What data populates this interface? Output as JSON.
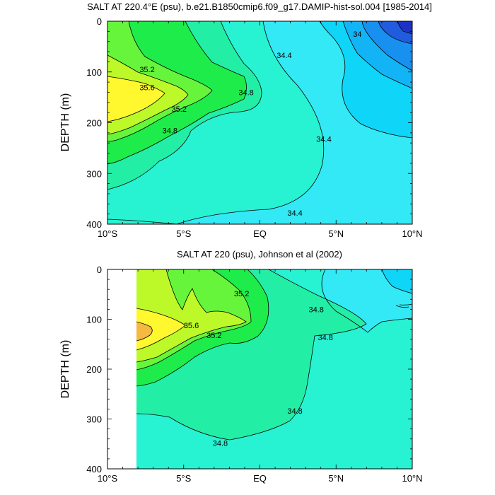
{
  "chart_data": [
    {
      "type": "contour",
      "title": "SALT AT 220.4°E (psu), b.e21.B1850cmip6.f09_g17.DAMIP-hist-sol.004 [1985-2014]",
      "xlabel": "",
      "ylabel": "DEPTH (m)",
      "xlim": [
        -10,
        10
      ],
      "ylim": [
        400,
        0
      ],
      "x_ticks": [
        -10,
        -5,
        0,
        5,
        10
      ],
      "x_tick_labels": [
        "10°S",
        "5°S",
        "EQ",
        "5°N",
        "10°N"
      ],
      "y_ticks": [
        0,
        100,
        200,
        300,
        400
      ],
      "y_tick_labels": [
        "0",
        "100",
        "200",
        "300",
        "400"
      ],
      "contour_labels": [
        {
          "text": "35.2",
          "x": -7.4,
          "y": 95
        },
        {
          "text": "35.6",
          "x": -7.4,
          "y": 130
        },
        {
          "text": "35.2",
          "x": -5.3,
          "y": 173
        },
        {
          "text": "34.8",
          "x": -5.9,
          "y": 215
        },
        {
          "text": "34.8",
          "x": -0.9,
          "y": 140
        },
        {
          "text": "34.4",
          "x": 1.6,
          "y": 67
        },
        {
          "text": "34.4",
          "x": 4.2,
          "y": 232
        },
        {
          "text": "34.4",
          "x": 2.3,
          "y": 378
        },
        {
          "text": "34",
          "x": 6.4,
          "y": 25
        }
      ],
      "colors": {
        "35.8+": "#f5b840",
        "35.6": "#fff82f",
        "35.4": "#bdf829",
        "35.2": "#67f53c",
        "35.0": "#1eec4a",
        "34.8": "#23eea6",
        "34.6": "#27f2d2",
        "34.4": "#33e9f5",
        "34.2": "#0fd6f8",
        "34.0": "#13b4f5",
        "33.8": "#1890f0",
        "33.6": "#205cdd",
        "33.4": "#1c32c4"
      }
    },
    {
      "type": "contour",
      "title": "SALT AT 220 (psu), Johnson et al (2002)",
      "xlabel": "",
      "ylabel": "DEPTH (m)",
      "xlim": [
        -10,
        10
      ],
      "ylim": [
        400,
        0
      ],
      "data_xlim": [
        -8,
        10
      ],
      "x_ticks": [
        -10,
        -5,
        0,
        5,
        10
      ],
      "x_tick_labels": [
        "10°S",
        "5°S",
        "EQ",
        "5°N",
        "10°N"
      ],
      "y_ticks": [
        0,
        100,
        200,
        300,
        400
      ],
      "y_tick_labels": [
        "0",
        "100",
        "200",
        "300",
        "400"
      ],
      "contour_labels": [
        {
          "text": "35.2",
          "x": -1.2,
          "y": 48
        },
        {
          "text": "35.6",
          "x": -4.5,
          "y": 112
        },
        {
          "text": "35.2",
          "x": -3.0,
          "y": 132
        },
        {
          "text": "34.8",
          "x": 3.7,
          "y": 80
        },
        {
          "text": "34.8",
          "x": 4.3,
          "y": 136
        },
        {
          "text": "34.8",
          "x": 2.3,
          "y": 284
        },
        {
          "text": "34.8",
          "x": -2.6,
          "y": 348
        }
      ]
    }
  ]
}
